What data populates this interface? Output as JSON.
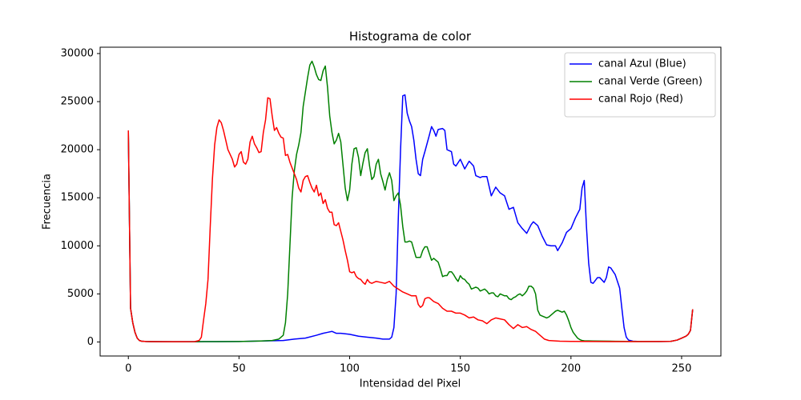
{
  "chart_data": {
    "type": "line",
    "title": "Histograma de color",
    "x_label": "Intensidad del Pixel",
    "y_label": "Frecuencia",
    "xlim": [
      -12.75,
      267.75
    ],
    "xticks": [
      0,
      50,
      100,
      150,
      200,
      250
    ],
    "ylim": [
      -1460,
      30660
    ],
    "yticks": [
      0,
      5000,
      10000,
      15000,
      20000,
      25000,
      30000
    ],
    "grid": false,
    "legend_loc": "upper right",
    "series": [
      {
        "name": "canal Azul (Blue)",
        "color": "#0000ff",
        "x": [
          0,
          1,
          2,
          3,
          4,
          5,
          6,
          8,
          10,
          20,
          30,
          40,
          50,
          60,
          70,
          75,
          80,
          85,
          88,
          90,
          92,
          94,
          96,
          100,
          104,
          108,
          112,
          115,
          118,
          119,
          120,
          121,
          122,
          123,
          124,
          125,
          126,
          127,
          128,
          129,
          130,
          131,
          132,
          133,
          134,
          136,
          137,
          138,
          139,
          140,
          142,
          143,
          144,
          146,
          147,
          148,
          150,
          152,
          154,
          156,
          157,
          159,
          160,
          162,
          164,
          166,
          168,
          170,
          172,
          174,
          176,
          178,
          180,
          182,
          183,
          185,
          187,
          189,
          191,
          193,
          194,
          196,
          198,
          200,
          202,
          204,
          205,
          206,
          207,
          208,
          209,
          210,
          212,
          213,
          215,
          216,
          217,
          218,
          220,
          222,
          223,
          224,
          225,
          226,
          228,
          230,
          240,
          245,
          248,
          250,
          252,
          253,
          254,
          255
        ],
        "values": [
          21800,
          3500,
          2000,
          1000,
          400,
          150,
          80,
          50,
          40,
          30,
          30,
          40,
          50,
          100,
          150,
          300,
          400,
          700,
          900,
          1000,
          1100,
          900,
          900,
          800,
          600,
          500,
          400,
          300,
          300,
          500,
          1500,
          5000,
          13000,
          20000,
          25600,
          25700,
          23800,
          23000,
          22400,
          21000,
          19000,
          17500,
          17300,
          19000,
          19800,
          21500,
          22400,
          22000,
          21400,
          22100,
          22200,
          22000,
          20000,
          19800,
          18500,
          18300,
          19000,
          18000,
          18800,
          18300,
          17300,
          17100,
          17200,
          17200,
          15200,
          16100,
          15500,
          15200,
          13800,
          14000,
          12400,
          11800,
          11300,
          12200,
          12500,
          12100,
          11000,
          10100,
          10000,
          10000,
          9500,
          10300,
          11400,
          11800,
          12900,
          13800,
          16000,
          16800,
          12000,
          8200,
          6200,
          6100,
          6700,
          6700,
          6200,
          6700,
          7800,
          7700,
          7000,
          5600,
          3500,
          1500,
          500,
          200,
          80,
          60,
          50,
          60,
          200,
          400,
          600,
          800,
          1200,
          3400
        ]
      },
      {
        "name": "canal Verde (Green)",
        "color": "#008000",
        "x": [
          0,
          1,
          2,
          3,
          4,
          5,
          6,
          8,
          10,
          20,
          30,
          40,
          50,
          60,
          65,
          68,
          70,
          71,
          72,
          73,
          74,
          75,
          76,
          77,
          78,
          79,
          80,
          81,
          82,
          83,
          84,
          85,
          86,
          87,
          88,
          89,
          90,
          91,
          92,
          93,
          94,
          95,
          96,
          97,
          98,
          99,
          100,
          101,
          102,
          103,
          104,
          105,
          106,
          107,
          108,
          109,
          110,
          111,
          112,
          113,
          114,
          115,
          116,
          117,
          118,
          119,
          120,
          121,
          122,
          123,
          124,
          125,
          126,
          127,
          128,
          129,
          130,
          132,
          133,
          134,
          135,
          136,
          137,
          138,
          139,
          140,
          141,
          142,
          143,
          144,
          145,
          146,
          147,
          148,
          149,
          150,
          151,
          152,
          153,
          154,
          155,
          156,
          157,
          158,
          159,
          160,
          161,
          162,
          163,
          164,
          165,
          166,
          167,
          168,
          169,
          170,
          171,
          172,
          173,
          174,
          175,
          176,
          177,
          178,
          179,
          180,
          181,
          182,
          183,
          184,
          185,
          186,
          187,
          188,
          189,
          190,
          191,
          192,
          193,
          194,
          195,
          196,
          197,
          198,
          199,
          200,
          201,
          202,
          203,
          204,
          205,
          206,
          210,
          220,
          230,
          240,
          245,
          248,
          250,
          252,
          253,
          254,
          255
        ],
        "values": [
          22000,
          3500,
          2000,
          1000,
          400,
          150,
          80,
          50,
          40,
          30,
          30,
          40,
          50,
          100,
          150,
          300,
          700,
          2000,
          5000,
          10000,
          15000,
          17800,
          19500,
          20500,
          21800,
          24500,
          26000,
          27500,
          28800,
          29200,
          28600,
          27800,
          27300,
          27200,
          28200,
          28700,
          26500,
          23500,
          21800,
          20600,
          21000,
          21700,
          20800,
          18400,
          16000,
          14700,
          15800,
          18500,
          20100,
          20200,
          19200,
          17300,
          18600,
          19700,
          20100,
          18300,
          16900,
          17200,
          18500,
          19000,
          17500,
          16700,
          15800,
          16900,
          17600,
          16800,
          14700,
          15200,
          15500,
          14200,
          12000,
          10400,
          10400,
          10500,
          10400,
          9600,
          8800,
          8800,
          9500,
          9900,
          9900,
          9200,
          8500,
          8700,
          8500,
          8300,
          7600,
          6800,
          6900,
          6900,
          7300,
          7300,
          7000,
          6600,
          6300,
          6900,
          6600,
          6500,
          6200,
          6000,
          5500,
          5600,
          5700,
          5600,
          5300,
          5400,
          5500,
          5300,
          5000,
          5100,
          5100,
          4800,
          4700,
          5000,
          4900,
          4800,
          4800,
          4500,
          4400,
          4600,
          4700,
          4900,
          5000,
          4800,
          5000,
          5300,
          5800,
          5800,
          5600,
          5000,
          3300,
          2800,
          2700,
          2600,
          2500,
          2600,
          2800,
          3000,
          3200,
          3300,
          3200,
          3100,
          3200,
          2800,
          2200,
          1500,
          1000,
          700,
          400,
          250,
          150,
          120,
          100,
          70,
          50,
          50,
          60,
          200,
          400,
          600,
          800,
          1200,
          3400
        ]
      },
      {
        "name": "canal Rojo (Red)",
        "color": "#ff0000",
        "x": [
          0,
          1,
          2,
          3,
          4,
          5,
          6,
          8,
          10,
          15,
          20,
          25,
          30,
          32,
          33,
          34,
          35,
          36,
          37,
          38,
          39,
          40,
          41,
          42,
          43,
          44,
          45,
          46,
          47,
          48,
          49,
          50,
          51,
          52,
          53,
          54,
          55,
          56,
          57,
          58,
          59,
          60,
          61,
          62,
          63,
          64,
          65,
          66,
          67,
          68,
          69,
          70,
          71,
          72,
          73,
          74,
          75,
          76,
          77,
          78,
          79,
          80,
          81,
          82,
          83,
          84,
          85,
          86,
          87,
          88,
          89,
          90,
          91,
          92,
          93,
          94,
          95,
          96,
          97,
          98,
          99,
          100,
          101,
          102,
          103,
          104,
          105,
          106,
          107,
          108,
          109,
          110,
          112,
          114,
          116,
          118,
          120,
          122,
          124,
          126,
          128,
          130,
          131,
          132,
          133,
          134,
          135,
          136,
          138,
          140,
          142,
          144,
          146,
          148,
          150,
          152,
          154,
          156,
          158,
          160,
          162,
          164,
          166,
          168,
          170,
          172,
          174,
          176,
          178,
          180,
          182,
          184,
          186,
          188,
          190,
          195,
          200,
          210,
          220,
          230,
          240,
          245,
          248,
          250,
          252,
          253,
          254,
          255
        ],
        "values": [
          22000,
          3500,
          2000,
          1000,
          400,
          150,
          80,
          50,
          40,
          30,
          30,
          30,
          40,
          150,
          500,
          2300,
          4000,
          6500,
          12000,
          17000,
          20500,
          22300,
          23100,
          22800,
          22000,
          21000,
          20000,
          19500,
          19000,
          18200,
          18500,
          19500,
          19800,
          18700,
          18500,
          19000,
          20800,
          21400,
          20600,
          20200,
          19700,
          19800,
          21800,
          23100,
          25400,
          25300,
          23500,
          22000,
          22300,
          21700,
          21300,
          21200,
          19400,
          19500,
          18700,
          18100,
          17500,
          16900,
          16000,
          15600,
          16800,
          17200,
          17300,
          16600,
          16000,
          15600,
          16300,
          15200,
          15500,
          14400,
          14800,
          13900,
          13500,
          13500,
          12200,
          12100,
          12400,
          11500,
          10600,
          9500,
          8500,
          7300,
          7200,
          7300,
          6800,
          6600,
          6500,
          6200,
          6000,
          6500,
          6200,
          6100,
          6300,
          6200,
          6100,
          6300,
          5800,
          5500,
          5200,
          5000,
          4800,
          4800,
          3900,
          3600,
          3800,
          4500,
          4600,
          4600,
          4200,
          4000,
          3500,
          3200,
          3200,
          3000,
          3000,
          2800,
          2500,
          2600,
          2300,
          2200,
          1900,
          2300,
          2500,
          2400,
          2300,
          1800,
          1400,
          1800,
          1500,
          1600,
          1300,
          1100,
          700,
          300,
          150,
          80,
          60,
          50,
          40,
          40,
          50,
          60,
          200,
          400,
          600,
          800,
          1200,
          3400
        ]
      }
    ]
  }
}
